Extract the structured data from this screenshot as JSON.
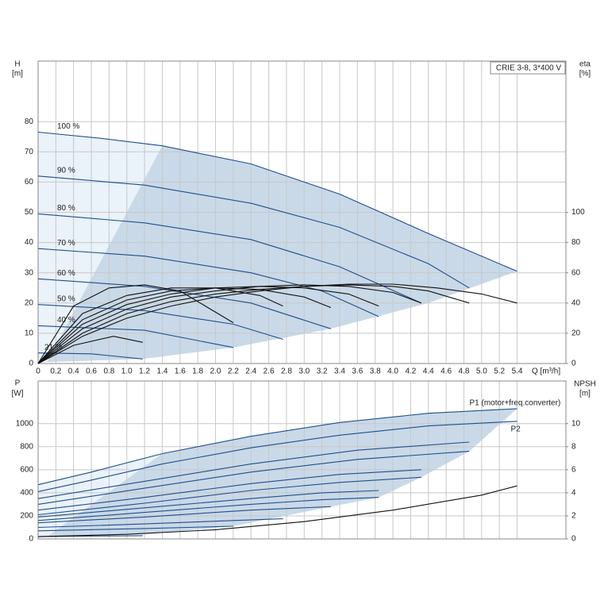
{
  "chart_data": [
    {
      "type": "line",
      "y_label": "H",
      "y_unit": "[m]",
      "y2_label": "eta",
      "y2_unit": "[%]",
      "x_label": "Q [m³/h]",
      "legend_box": "CRIE 3-8, 3*400 V",
      "xlim": [
        0,
        5.95
      ],
      "ylim": [
        0,
        100
      ],
      "y2lim": [
        0,
        200
      ],
      "xticks": [
        0,
        0.2,
        0.4,
        0.6,
        0.8,
        {
          "value": 1,
          "label": "1.0"
        },
        1.2,
        1.4,
        1.6,
        1.8,
        {
          "value": 2,
          "label": "2.0"
        },
        2.2,
        2.4,
        2.6,
        2.8,
        {
          "value": 3,
          "label": "3.0"
        },
        3.2,
        3.4,
        3.6,
        3.8,
        {
          "value": 4,
          "label": "4.0"
        },
        4.2,
        4.4,
        4.6,
        4.8,
        {
          "value": 5,
          "label": "5.0"
        },
        5.2,
        5.4
      ],
      "yticks": [
        0,
        10,
        20,
        30,
        40,
        50,
        60,
        70,
        80
      ],
      "y2ticks": [
        0,
        20,
        40,
        60,
        80,
        100
      ],
      "grid": true,
      "regions": [
        {
          "color": "#eaf2fa",
          "x": [
            0,
            1.4,
            0.1,
            0
          ],
          "values": [
            76.5,
            72,
            0.5,
            0
          ]
        },
        {
          "color": "#c9d9e8",
          "x": [
            1.4,
            2.4,
            3.4,
            4.4,
            5.4,
            4.4,
            3.3,
            2.2,
            1.18,
            0.1
          ],
          "values": [
            72,
            66,
            56,
            43,
            30.5,
            20,
            11.5,
            5.3,
            1.5,
            0.5
          ]
        }
      ],
      "series": [
        {
          "name": "100 %",
          "color": "#1f4e8c",
          "x": [
            0,
            0.7,
            1.4,
            2.4,
            3.4,
            4.4,
            5.4
          ],
          "values": [
            76.5,
            74.5,
            72,
            66,
            56,
            43,
            30.5
          ]
        },
        {
          "name": "90 %",
          "color": "#1f4e8c",
          "x": [
            0,
            1.2,
            2.4,
            3.4,
            4.4,
            4.86
          ],
          "values": [
            62,
            59,
            53,
            45,
            33,
            25
          ]
        },
        {
          "name": "80 %",
          "color": "#1f4e8c",
          "x": [
            0,
            1.2,
            2.4,
            3.4,
            4.32
          ],
          "values": [
            49.5,
            46.5,
            41,
            32,
            20
          ]
        },
        {
          "name": "70 %",
          "color": "#1f4e8c",
          "x": [
            0,
            1.2,
            2.4,
            3.2,
            3.84
          ],
          "values": [
            38,
            35.5,
            30,
            24,
            15.5
          ]
        },
        {
          "name": "60 %",
          "color": "#1f4e8c",
          "x": [
            0,
            1.2,
            2.4,
            3.3
          ],
          "values": [
            28,
            25.5,
            20,
            11.5
          ]
        },
        {
          "name": "50 %",
          "color": "#1f4e8c",
          "x": [
            0,
            1.2,
            2.2,
            2.76
          ],
          "values": [
            19.5,
            17.5,
            13,
            8
          ]
        },
        {
          "name": "40 %",
          "color": "#1f4e8c",
          "x": [
            0,
            1.2,
            2.2
          ],
          "values": [
            12.5,
            11,
            5.3
          ]
        },
        {
          "name": "21 %",
          "color": "#1f4e8c",
          "x": [
            0,
            0.6,
            1.18
          ],
          "values": [
            3.5,
            3.2,
            1.5
          ]
        },
        {
          "axis": "y2",
          "color": "#111111",
          "x": [
            0,
            0.5,
            1,
            1.5,
            2,
            2.5,
            3,
            3.5,
            4,
            4.5,
            5,
            5.4
          ],
          "values": [
            0,
            18,
            30,
            38,
            44,
            48,
            51,
            52.5,
            52.5,
            50,
            46,
            40
          ]
        },
        {
          "axis": "y2",
          "color": "#111111",
          "x": [
            0,
            0.5,
            1,
            1.5,
            2,
            2.5,
            3,
            3.5,
            4,
            4.4,
            4.86
          ],
          "values": [
            0,
            20,
            33,
            41,
            46,
            49,
            51,
            52,
            51,
            48,
            40
          ]
        },
        {
          "axis": "y2",
          "color": "#111111",
          "x": [
            0,
            0.5,
            1,
            1.5,
            2,
            2.5,
            3,
            3.5,
            4,
            4.32
          ],
          "values": [
            0,
            23,
            36,
            44,
            48,
            51,
            52,
            51,
            47,
            40
          ]
        },
        {
          "axis": "y2",
          "color": "#111111",
          "x": [
            0,
            0.5,
            1,
            1.5,
            2,
            2.5,
            3,
            3.5,
            3.84
          ],
          "values": [
            0,
            26,
            39,
            46,
            50,
            51,
            50,
            46,
            38
          ]
        },
        {
          "axis": "y2",
          "color": "#111111",
          "x": [
            0,
            0.5,
            1,
            1.5,
            2,
            2.5,
            3,
            3.3
          ],
          "values": [
            0,
            29,
            42,
            48,
            50,
            49,
            44,
            37
          ]
        },
        {
          "axis": "y2",
          "color": "#111111",
          "x": [
            0,
            0.5,
            1,
            1.5,
            2,
            2.5,
            2.76
          ],
          "values": [
            0,
            33,
            45,
            50,
            50,
            45,
            38
          ]
        },
        {
          "axis": "y2",
          "color": "#111111",
          "x": [
            0,
            0.4,
            0.8,
            1.2,
            1.6,
            2.2
          ],
          "values": [
            0,
            38,
            50,
            52,
            48,
            27
          ]
        },
        {
          "axis": "y2",
          "color": "#111111",
          "x": [
            0,
            0.4,
            0.85,
            1.18
          ],
          "values": [
            0,
            12,
            18,
            14
          ]
        }
      ]
    },
    {
      "type": "line",
      "y_label": "P",
      "y_unit": "[W]",
      "y2_label": "NPSH",
      "y2_unit": "[m]",
      "xlim": [
        0,
        5.95
      ],
      "ylim": [
        0,
        1370
      ],
      "y2lim": [
        0,
        13.7
      ],
      "yticks": [
        0,
        200,
        400,
        600,
        800,
        1000
      ],
      "y2ticks": [
        0,
        2,
        4,
        6,
        8,
        10
      ],
      "grid": true,
      "regions": [
        {
          "color": "#eaf2fa",
          "x": [
            0,
            1.4,
            0.1,
            0
          ],
          "values": [
            470,
            740,
            20,
            0
          ]
        },
        {
          "color": "#c9d9e8",
          "x": [
            1.4,
            2.4,
            3.4,
            4.4,
            5.4,
            4.86,
            4.32,
            3.84,
            3.3,
            2.2,
            1.2,
            0.1
          ],
          "values": [
            740,
            890,
            1010,
            1090,
            1130,
            760,
            535,
            360,
            280,
            110,
            40,
            20
          ]
        }
      ],
      "series": [
        {
          "name": "P1 (motor+freq.converter)",
          "color": "#1f4e8c",
          "x": [
            0,
            0.6,
            1.4,
            2.4,
            3.4,
            4.4,
            5.4
          ],
          "values": [
            470,
            580,
            740,
            890,
            1010,
            1090,
            1130
          ]
        },
        {
          "name": "P2",
          "color": "#1f4e8c",
          "x": [
            0,
            0.6,
            1.4,
            2.4,
            3.4,
            4.4,
            5.4
          ],
          "values": [
            410,
            510,
            650,
            790,
            900,
            980,
            1020
          ]
        },
        {
          "color": "#1f4e8c",
          "x": [
            0,
            1.2,
            2.4,
            3.6,
            4.86
          ],
          "values": [
            350,
            500,
            650,
            770,
            840
          ]
        },
        {
          "color": "#1f4e8c",
          "x": [
            0,
            1.2,
            2.4,
            3.6,
            4.86
          ],
          "values": [
            300,
            440,
            580,
            690,
            760
          ]
        },
        {
          "color": "#1f4e8c",
          "x": [
            0,
            1.2,
            2.4,
            3.4,
            4.32
          ],
          "values": [
            250,
            360,
            480,
            560,
            600
          ]
        },
        {
          "color": "#1f4e8c",
          "x": [
            0,
            1.2,
            2.4,
            3.4,
            4.32
          ],
          "values": [
            210,
            310,
            420,
            490,
            535
          ]
        },
        {
          "color": "#1f4e8c",
          "x": [
            0,
            1.2,
            2.4,
            3.2,
            3.84
          ],
          "values": [
            190,
            270,
            350,
            400,
            420
          ]
        },
        {
          "color": "#1f4e8c",
          "x": [
            0,
            1.2,
            2.4,
            3.2,
            3.84
          ],
          "values": [
            160,
            230,
            300,
            340,
            360
          ]
        },
        {
          "color": "#1f4e8c",
          "x": [
            0,
            1.2,
            2.4,
            3.3
          ],
          "values": [
            140,
            190,
            250,
            280
          ]
        },
        {
          "color": "#1f4e8c",
          "x": [
            0,
            1.2,
            2.2,
            2.76
          ],
          "values": [
            100,
            130,
            160,
            175
          ]
        },
        {
          "color": "#1f4e8c",
          "x": [
            0,
            1.2,
            2.2
          ],
          "values": [
            70,
            90,
            110
          ]
        },
        {
          "color": "#1f4e8c",
          "x": [
            0,
            0.6,
            1.18
          ],
          "values": [
            20,
            25,
            28
          ]
        },
        {
          "axis": "y2",
          "color": "#111111",
          "x": [
            0,
            1,
            2,
            3,
            4,
            5,
            5.4
          ],
          "values": [
            0.2,
            0.4,
            0.8,
            1.5,
            2.5,
            3.8,
            4.6
          ]
        }
      ]
    }
  ]
}
